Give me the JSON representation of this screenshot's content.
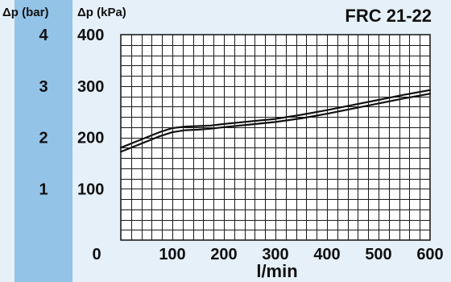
{
  "chart_data": {
    "type": "line",
    "title": "FRC 21-22",
    "xlabel": "l/min",
    "ylabel": "Δp (kPa)",
    "ylabel_secondary": "Δp (bar)",
    "xlim": [
      0,
      600
    ],
    "ylim": [
      0,
      400
    ],
    "x_ticks": [
      "0",
      "100",
      "200",
      "300",
      "400",
      "500",
      "600"
    ],
    "y_ticks": [
      "100",
      "200",
      "300",
      "400"
    ],
    "y_ticks_secondary": [
      "1",
      "2",
      "3",
      "4"
    ],
    "grid": true,
    "series": [
      {
        "x": [
          0,
          25,
          50,
          75,
          100,
          125,
          150,
          175,
          200,
          250,
          300,
          350,
          400,
          450,
          500,
          550,
          600
        ],
        "values": [
          180,
          190,
          200,
          210,
          218,
          221,
          222,
          223,
          226,
          231,
          236,
          244,
          253,
          263,
          273,
          283,
          292
        ]
      },
      {
        "x": [
          0,
          25,
          50,
          75,
          100,
          125,
          150,
          175,
          200,
          250,
          300,
          350,
          400,
          450,
          500,
          550,
          600
        ],
        "values": [
          172,
          182,
          192,
          202,
          210,
          214,
          215,
          217,
          220,
          225,
          230,
          237,
          246,
          256,
          266,
          276,
          285
        ]
      }
    ]
  },
  "colors": {
    "left_band": "#93c3e7",
    "background": "#e6f0f8",
    "plot_background": "#ffffff",
    "line": "#111111"
  }
}
